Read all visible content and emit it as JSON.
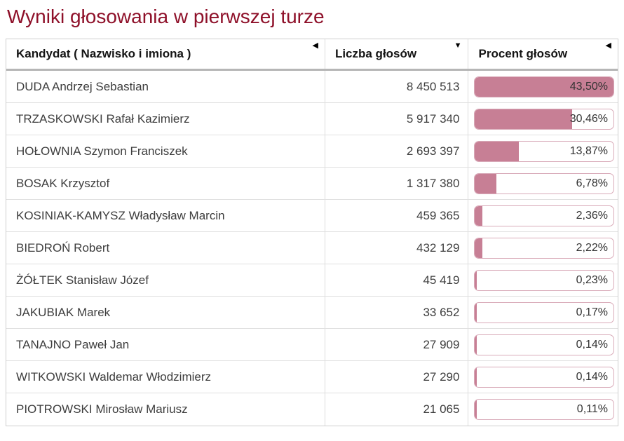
{
  "title": "Wyniki głosowania w pierwszej turze",
  "colors": {
    "title": "#8e1029",
    "bar_fill": "#c77f95",
    "bar_border": "#d9abb9"
  },
  "table": {
    "bar_scale_max_percent": 43.5,
    "columns": [
      {
        "label": "Kandydat ( Nazwisko i imiona )",
        "sort_glyph": "◀"
      },
      {
        "label": "Liczba głosów",
        "sort_glyph": "▼"
      },
      {
        "label": "Procent głosów",
        "sort_glyph": "◀"
      }
    ],
    "rows": [
      {
        "candidate": "DUDA Andrzej Sebastian",
        "votes": "8 450 513",
        "percent": "43,50%",
        "percent_value": 43.5
      },
      {
        "candidate": "TRZASKOWSKI Rafał Kazimierz",
        "votes": "5 917 340",
        "percent": "30,46%",
        "percent_value": 30.46
      },
      {
        "candidate": "HOŁOWNIA Szymon Franciszek",
        "votes": "2 693 397",
        "percent": "13,87%",
        "percent_value": 13.87
      },
      {
        "candidate": "BOSAK Krzysztof",
        "votes": "1 317 380",
        "percent": "6,78%",
        "percent_value": 6.78
      },
      {
        "candidate": "KOSINIAK-KAMYSZ Władysław Marcin",
        "votes": "459 365",
        "percent": "2,36%",
        "percent_value": 2.36
      },
      {
        "candidate": "BIEDROŃ Robert",
        "votes": "432 129",
        "percent": "2,22%",
        "percent_value": 2.22
      },
      {
        "candidate": "ŻÓŁTEK Stanisław Józef",
        "votes": "45 419",
        "percent": "0,23%",
        "percent_value": 0.23
      },
      {
        "candidate": "JAKUBIAK Marek",
        "votes": "33 652",
        "percent": "0,17%",
        "percent_value": 0.17
      },
      {
        "candidate": "TANAJNO Paweł Jan",
        "votes": "27 909",
        "percent": "0,14%",
        "percent_value": 0.14
      },
      {
        "candidate": "WITKOWSKI Waldemar Włodzimierz",
        "votes": "27 290",
        "percent": "0,14%",
        "percent_value": 0.14
      },
      {
        "candidate": "PIOTROWSKI Mirosław Mariusz",
        "votes": "21 065",
        "percent": "0,11%",
        "percent_value": 0.11
      }
    ]
  },
  "chart_data": {
    "type": "table",
    "title": "Wyniki głosowania w pierwszej turze",
    "columns": [
      "Kandydat ( Nazwisko i imiona )",
      "Liczba głosów",
      "Procent głosów"
    ],
    "categories": [
      "DUDA Andrzej Sebastian",
      "TRZASKOWSKI Rafał Kazimierz",
      "HOŁOWNIA Szymon Franciszek",
      "BOSAK Krzysztof",
      "KOSINIAK-KAMYSZ Władysław Marcin",
      "BIEDROŃ Robert",
      "ŻÓŁTEK Stanisław Józef",
      "JAKUBIAK Marek",
      "TANAJNO Paweł Jan",
      "WITKOWSKI Waldemar Włodzimierz",
      "PIOTROWSKI Mirosław Mariusz"
    ],
    "series": [
      {
        "name": "Liczba głosów",
        "values": [
          8450513,
          5917340,
          2693397,
          1317380,
          459365,
          432129,
          45419,
          33652,
          27909,
          27290,
          21065
        ]
      },
      {
        "name": "Procent głosów",
        "values": [
          43.5,
          30.46,
          13.87,
          6.78,
          2.36,
          2.22,
          0.23,
          0.17,
          0.14,
          0.14,
          0.11
        ]
      }
    ],
    "bar_axis_max": 43.5,
    "legend_position": "none",
    "grid": false
  }
}
